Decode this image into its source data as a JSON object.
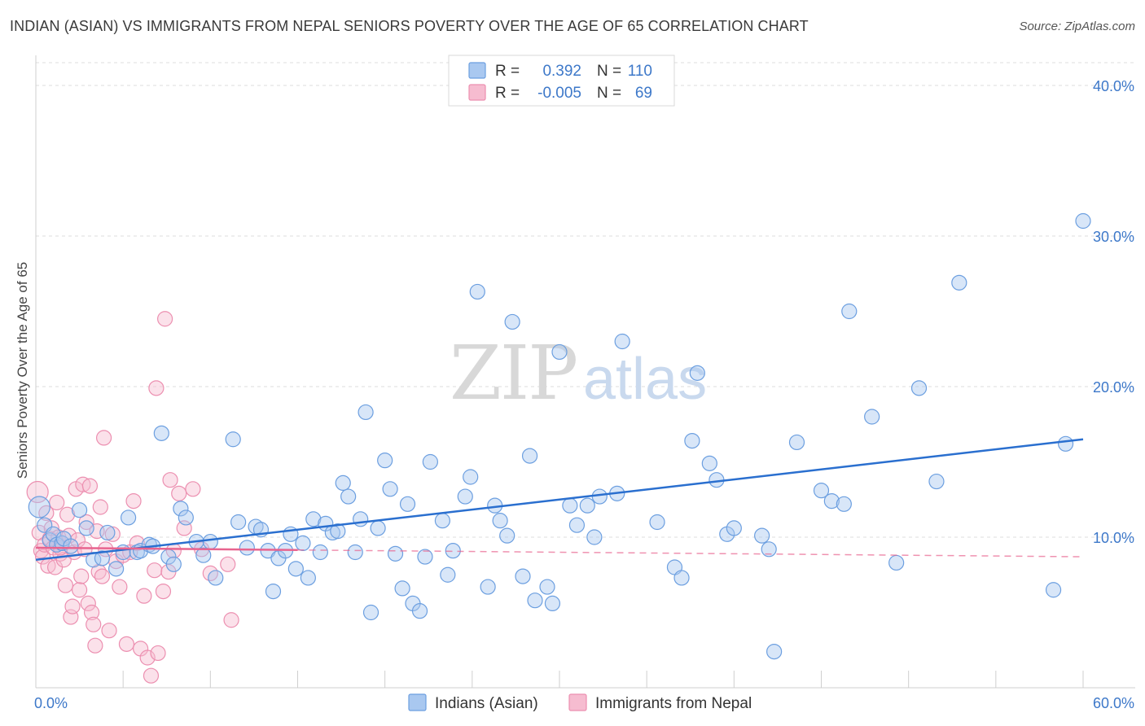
{
  "title": "INDIAN (ASIAN) VS IMMIGRANTS FROM NEPAL SENIORS POVERTY OVER THE AGE OF 65 CORRELATION CHART",
  "source": "Source: ZipAtlas.com",
  "watermark": {
    "zip": "ZIP",
    "atlas": "atlas"
  },
  "colors": {
    "blue_fill": "#a9c8f0",
    "blue_stroke": "#6c9fe0",
    "blue_line": "#2a6fcf",
    "pink_fill": "#f6bcd0",
    "pink_stroke": "#ec8fb0",
    "pink_line": "#e8648f",
    "grid": "#dcdcdc",
    "tick_text": "#3d78c9"
  },
  "legend": {
    "rows": [
      {
        "r_label": "R =",
        "r_value": "0.392",
        "n_label": "N =",
        "n_value": "110"
      },
      {
        "r_label": "R =",
        "r_value": "-0.005",
        "n_label": "N =",
        "n_value": "69"
      }
    ]
  },
  "bottom_legend": [
    "Indians (Asian)",
    "Immigrants from Nepal"
  ],
  "chart_data": {
    "type": "scatter",
    "title": "INDIAN (ASIAN) VS IMMIGRANTS FROM NEPAL SENIORS POVERTY OVER THE AGE OF 65 CORRELATION CHART",
    "xlabel": "",
    "ylabel": "Seniors Poverty Over the Age of 65",
    "xlim": [
      0,
      60
    ],
    "ylim": [
      0,
      42
    ],
    "x_tick_labels": [
      "0.0%",
      "60.0%"
    ],
    "y_ticks": [
      10,
      20,
      30,
      40
    ],
    "y_tick_labels": [
      "10.0%",
      "20.0%",
      "30.0%",
      "40.0%"
    ],
    "grid": true,
    "legend_position": "top-center",
    "series": [
      {
        "name": "Indians (Asian)",
        "r": 0.392,
        "n": 110,
        "trend": {
          "x": [
            0,
            60
          ],
          "y": [
            8.5,
            16.5
          ],
          "style": "solid"
        },
        "points": [
          [
            0.2,
            12.0
          ],
          [
            0.5,
            10.8
          ],
          [
            0.8,
            9.8
          ],
          [
            1.0,
            10.2
          ],
          [
            1.2,
            9.5
          ],
          [
            1.5,
            9.6
          ],
          [
            1.6,
            9.9
          ],
          [
            2.0,
            9.4
          ],
          [
            2.5,
            11.8
          ],
          [
            2.9,
            10.6
          ],
          [
            3.3,
            8.5
          ],
          [
            3.8,
            8.6
          ],
          [
            4.1,
            10.3
          ],
          [
            4.6,
            7.9
          ],
          [
            5.0,
            9.0
          ],
          [
            5.3,
            11.3
          ],
          [
            5.8,
            9.0
          ],
          [
            6.0,
            9.1
          ],
          [
            6.5,
            9.5
          ],
          [
            6.7,
            9.4
          ],
          [
            7.2,
            16.9
          ],
          [
            7.6,
            8.7
          ],
          [
            7.9,
            8.2
          ],
          [
            8.3,
            11.9
          ],
          [
            8.6,
            11.3
          ],
          [
            9.2,
            9.7
          ],
          [
            9.6,
            8.8
          ],
          [
            10.0,
            9.7
          ],
          [
            10.3,
            7.3
          ],
          [
            11.3,
            16.5
          ],
          [
            11.6,
            11.0
          ],
          [
            12.1,
            9.3
          ],
          [
            12.6,
            10.7
          ],
          [
            12.9,
            10.5
          ],
          [
            13.3,
            9.1
          ],
          [
            13.6,
            6.4
          ],
          [
            13.9,
            8.6
          ],
          [
            14.3,
            9.1
          ],
          [
            14.6,
            10.2
          ],
          [
            14.9,
            7.9
          ],
          [
            15.3,
            9.6
          ],
          [
            15.6,
            7.3
          ],
          [
            15.9,
            11.2
          ],
          [
            16.3,
            9.0
          ],
          [
            16.6,
            10.9
          ],
          [
            17.0,
            10.3
          ],
          [
            17.3,
            10.4
          ],
          [
            17.6,
            13.6
          ],
          [
            17.9,
            12.7
          ],
          [
            18.3,
            9.0
          ],
          [
            18.6,
            11.2
          ],
          [
            18.9,
            18.3
          ],
          [
            19.2,
            5.0
          ],
          [
            19.6,
            10.6
          ],
          [
            20.0,
            15.1
          ],
          [
            20.3,
            13.2
          ],
          [
            20.6,
            8.9
          ],
          [
            21.0,
            6.6
          ],
          [
            21.3,
            12.2
          ],
          [
            21.6,
            5.6
          ],
          [
            22.0,
            5.1
          ],
          [
            22.3,
            8.7
          ],
          [
            22.6,
            15.0
          ],
          [
            23.3,
            11.1
          ],
          [
            23.6,
            7.5
          ],
          [
            23.9,
            9.1
          ],
          [
            24.6,
            12.7
          ],
          [
            24.9,
            14.0
          ],
          [
            25.3,
            26.3
          ],
          [
            25.9,
            6.7
          ],
          [
            26.3,
            12.1
          ],
          [
            26.6,
            11.1
          ],
          [
            27.0,
            10.1
          ],
          [
            27.3,
            24.3
          ],
          [
            27.9,
            7.4
          ],
          [
            28.3,
            15.4
          ],
          [
            28.6,
            5.8
          ],
          [
            29.3,
            6.7
          ],
          [
            29.6,
            5.6
          ],
          [
            30.0,
            22.3
          ],
          [
            30.6,
            12.1
          ],
          [
            31.0,
            10.8
          ],
          [
            31.6,
            12.1
          ],
          [
            32.0,
            10.0
          ],
          [
            32.3,
            12.7
          ],
          [
            33.3,
            12.9
          ],
          [
            33.6,
            23.0
          ],
          [
            35.6,
            11.0
          ],
          [
            36.6,
            8.0
          ],
          [
            37.0,
            7.3
          ],
          [
            37.6,
            16.4
          ],
          [
            37.9,
            20.9
          ],
          [
            38.6,
            14.9
          ],
          [
            39.0,
            13.8
          ],
          [
            39.6,
            10.2
          ],
          [
            40.0,
            10.6
          ],
          [
            41.6,
            10.1
          ],
          [
            42.0,
            9.2
          ],
          [
            42.3,
            2.4
          ],
          [
            43.6,
            16.3
          ],
          [
            45.0,
            13.1
          ],
          [
            45.6,
            12.4
          ],
          [
            46.3,
            12.2
          ],
          [
            46.6,
            25.0
          ],
          [
            47.9,
            18.0
          ],
          [
            49.3,
            8.3
          ],
          [
            50.6,
            19.9
          ],
          [
            51.6,
            13.7
          ],
          [
            52.9,
            26.9
          ],
          [
            58.3,
            6.5
          ],
          [
            60.0,
            31.0
          ],
          [
            59.0,
            16.2
          ]
        ]
      },
      {
        "name": "Immigrants from Nepal",
        "r": -0.005,
        "n": 69,
        "trend": {
          "x": [
            0,
            60
          ],
          "y": [
            9.3,
            8.7
          ],
          "solid_until": 15
        },
        "points": [
          [
            0.1,
            13.0
          ],
          [
            0.2,
            10.3
          ],
          [
            0.3,
            9.1
          ],
          [
            0.4,
            8.7
          ],
          [
            0.5,
            9.5
          ],
          [
            0.6,
            11.6
          ],
          [
            0.7,
            8.1
          ],
          [
            0.8,
            9.9
          ],
          [
            0.9,
            10.6
          ],
          [
            1.0,
            9.3
          ],
          [
            1.1,
            8.0
          ],
          [
            1.2,
            12.3
          ],
          [
            1.3,
            10.0
          ],
          [
            1.4,
            8.9
          ],
          [
            1.5,
            9.6
          ],
          [
            1.6,
            8.5
          ],
          [
            1.7,
            6.8
          ],
          [
            1.8,
            11.5
          ],
          [
            1.9,
            10.1
          ],
          [
            2.0,
            4.7
          ],
          [
            2.1,
            5.4
          ],
          [
            2.2,
            9.0
          ],
          [
            2.3,
            13.2
          ],
          [
            2.4,
            9.8
          ],
          [
            2.5,
            6.5
          ],
          [
            2.6,
            7.4
          ],
          [
            2.7,
            13.5
          ],
          [
            2.8,
            9.2
          ],
          [
            2.9,
            11.0
          ],
          [
            3.0,
            5.6
          ],
          [
            3.1,
            13.4
          ],
          [
            3.2,
            5.0
          ],
          [
            3.3,
            4.2
          ],
          [
            3.4,
            2.8
          ],
          [
            3.5,
            10.4
          ],
          [
            3.6,
            7.7
          ],
          [
            3.7,
            12.0
          ],
          [
            3.8,
            7.4
          ],
          [
            3.9,
            16.6
          ],
          [
            4.0,
            9.2
          ],
          [
            4.2,
            3.8
          ],
          [
            4.4,
            10.2
          ],
          [
            4.6,
            8.4
          ],
          [
            4.8,
            6.7
          ],
          [
            5.0,
            8.8
          ],
          [
            5.2,
            2.9
          ],
          [
            5.4,
            9.0
          ],
          [
            5.6,
            12.4
          ],
          [
            5.8,
            9.6
          ],
          [
            6.0,
            2.6
          ],
          [
            6.2,
            6.1
          ],
          [
            6.4,
            2.0
          ],
          [
            6.6,
            0.8
          ],
          [
            6.8,
            7.8
          ],
          [
            7.0,
            2.3
          ],
          [
            7.3,
            6.4
          ],
          [
            7.6,
            7.7
          ],
          [
            7.9,
            9.1
          ],
          [
            8.2,
            12.9
          ],
          [
            6.9,
            19.9
          ],
          [
            7.4,
            24.5
          ],
          [
            7.7,
            13.8
          ],
          [
            8.5,
            10.6
          ],
          [
            9.0,
            13.2
          ],
          [
            9.5,
            9.2
          ],
          [
            10.0,
            7.6
          ],
          [
            11.0,
            8.2
          ],
          [
            11.2,
            4.5
          ],
          [
            1.4,
            9.3
          ]
        ]
      }
    ]
  }
}
